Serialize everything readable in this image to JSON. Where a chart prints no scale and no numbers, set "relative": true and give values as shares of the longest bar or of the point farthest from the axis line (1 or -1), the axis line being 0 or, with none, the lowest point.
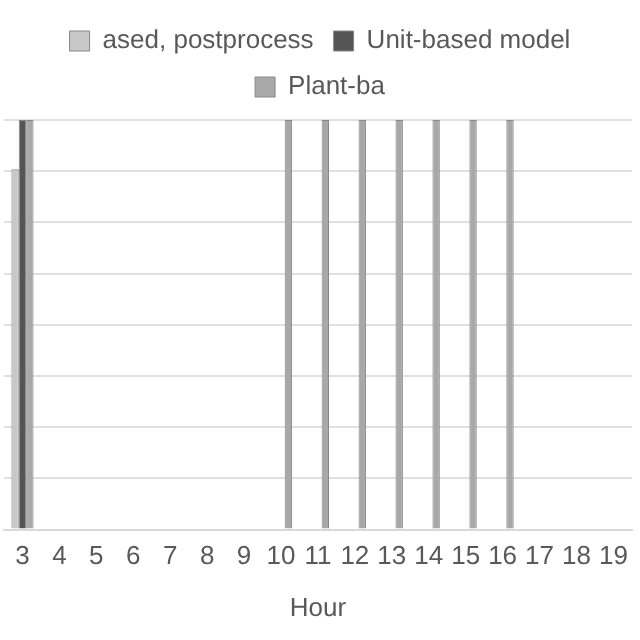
{
  "chart_data": {
    "type": "bar",
    "xlabel": "Hour",
    "relative": true,
    "grid": "y",
    "legend": "top",
    "categories": [
      "3",
      "4",
      "5",
      "6",
      "7",
      "8",
      "9",
      "10",
      "11",
      "12",
      "13",
      "14",
      "15",
      "16",
      "17",
      "18",
      "19"
    ],
    "series": [
      {
        "name": "ased, postprocess",
        "color": "#c8c8c8",
        "values": [
          0.88,
          0,
          0,
          0,
          0,
          0,
          0,
          0,
          0,
          0,
          0,
          0,
          0,
          0,
          0,
          0,
          0
        ]
      },
      {
        "name": "Unit-based model",
        "color": "#555555",
        "values": [
          1,
          0,
          0,
          0,
          0,
          0,
          0,
          0,
          0,
          0,
          0,
          0,
          0,
          0,
          0,
          0,
          0
        ]
      },
      {
        "name": "Plant-ba",
        "color": "#a8a8a8",
        "values": [
          1,
          0,
          0,
          0,
          0,
          0,
          0,
          1,
          1,
          1,
          1,
          1,
          1,
          1,
          0,
          0,
          0
        ]
      }
    ]
  }
}
